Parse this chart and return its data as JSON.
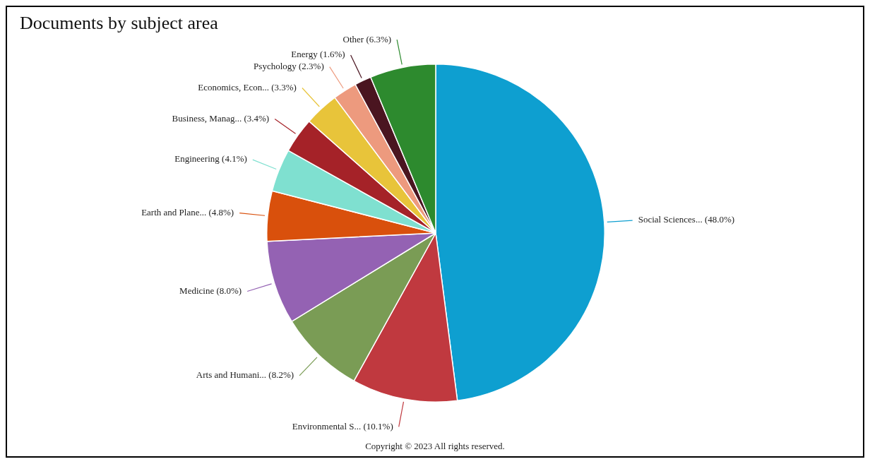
{
  "chart_data": {
    "type": "pie",
    "title": "Documents by subject area",
    "categories": [
      "Social Sciences...",
      "Environmental S...",
      "Arts and Humani...",
      "Medicine",
      "Earth and Plane...",
      "Engineering",
      "Business, Manag...",
      "Economics, Econ...",
      "Psychology",
      "Energy",
      "Other"
    ],
    "values": [
      48.0,
      10.1,
      8.2,
      8.0,
      4.8,
      4.1,
      3.4,
      3.3,
      2.3,
      1.6,
      6.3
    ],
    "value_labels": [
      "(48.0%)",
      "(10.1%)",
      "(8.2%)",
      "(8.0%)",
      "(4.8%)",
      "(4.1%)",
      "(3.4%)",
      "(3.3%)",
      "(2.3%)",
      "(1.6%)",
      "(6.3%)"
    ],
    "colors": [
      "#0e9fd0",
      "#c0393f",
      "#7a9c55",
      "#9462b3",
      "#d9500c",
      "#7fe0d0",
      "#a52228",
      "#e8c43a",
      "#ed9a7e",
      "#4a1520",
      "#2d8a2e"
    ],
    "legend": false,
    "annotations": [
      "Copyright © 2023 All rights reserved."
    ]
  }
}
